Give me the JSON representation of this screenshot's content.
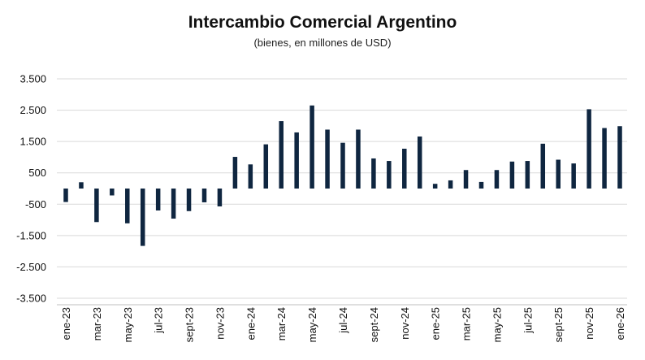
{
  "chart_data": {
    "type": "bar",
    "title": "Intercambio Comercial Argentino",
    "subtitle": "(bienes, en millones de USD)",
    "xlabel": "",
    "ylabel": "",
    "ylim": [
      -3500,
      3500
    ],
    "yticks": [
      3500,
      2500,
      1500,
      500,
      -500,
      -1500,
      -2500,
      -3500
    ],
    "ytick_labels": [
      "3.500",
      "2.500",
      "1.500",
      "500",
      "-500",
      "-1.500",
      "-2.500",
      "-3.500"
    ],
    "grid": true,
    "bar_color": "#0f2640",
    "grid_color": "#d9d9d9",
    "categories": [
      "ene-23",
      "feb-23",
      "mar-23",
      "abr-23",
      "may-23",
      "jun-23",
      "jul-23",
      "ago-23",
      "sept-23",
      "oct-23",
      "nov-23",
      "dic-23",
      "ene-24",
      "feb-24",
      "mar-24",
      "abr-24",
      "may-24",
      "jun-24",
      "jul-24",
      "ago-24",
      "sept-24",
      "oct-24",
      "nov-24",
      "dic-24",
      "ene-25",
      "feb-25",
      "mar-25",
      "abr-25",
      "may-25",
      "jun-25",
      "jul-25",
      "ago-25",
      "sept-25",
      "oct-25",
      "nov-25",
      "dic-25",
      "ene-26"
    ],
    "shown_labels": [
      "ene-23",
      "mar-23",
      "may-23",
      "jul-23",
      "sept-23",
      "nov-23",
      "ene-24",
      "mar-24",
      "may-24",
      "jul-24",
      "sept-24",
      "nov-24",
      "ene-25",
      "mar-25",
      "may-25",
      "jul-25",
      "sept-25",
      "nov-25",
      "ene-26"
    ],
    "values": [
      -430,
      200,
      -1070,
      -220,
      -1110,
      -1830,
      -700,
      -960,
      -720,
      -440,
      -570,
      1010,
      770,
      1410,
      2150,
      1790,
      2650,
      1880,
      1460,
      1880,
      960,
      880,
      1270,
      1660,
      150,
      260,
      590,
      210,
      590,
      860,
      880,
      1430,
      920,
      800,
      2530,
      1930,
      1990
    ]
  }
}
